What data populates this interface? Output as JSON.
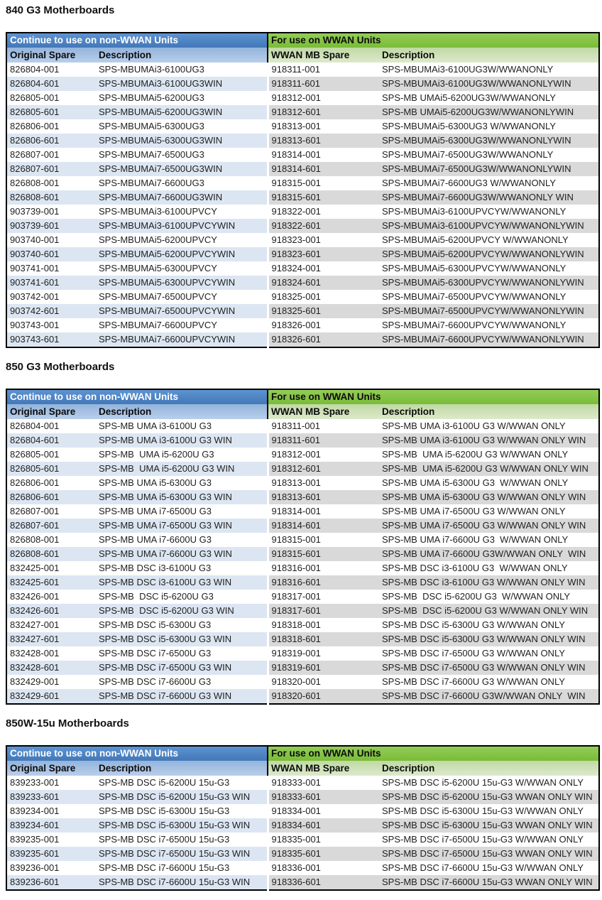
{
  "colors": {
    "banner_blue": "#4c83c4",
    "column_header_blue": "#9dbce1",
    "row_shade_blue": "#dce6f2",
    "banner_green": "#85c540",
    "column_header_green": "#ccdfb5",
    "row_shade_gray": "#d9d9d9",
    "table_border": "#000000",
    "banner_left_text": "#ffffff",
    "body_text": "#1f1f1f"
  },
  "sections": [
    {
      "title": "840 G3 Motherboards",
      "banner_left": "Continue to use on non-WWAN Units",
      "banner_right": "For use on WWAN Units",
      "columns": [
        "Original Spare",
        "Description",
        "WWAN MB Spare",
        "Description"
      ],
      "rows": [
        [
          "826804-001",
          "SPS-MBUMAi3-6100UG3",
          "918311-001",
          "SPS-MBUMAi3-6100UG3W/WWANONLY"
        ],
        [
          "826804-601",
          "SPS-MBUMAi3-6100UG3WIN",
          "918311-601",
          "SPS-MBUMAi3-6100UG3W/WWANONLYWIN"
        ],
        [
          "826805-001",
          "SPS-MBUMAi5-6200UG3",
          "918312-001",
          "SPS-MB UMAi5-6200UG3W/WWANONLY"
        ],
        [
          "826805-601",
          "SPS-MBUMAi5-6200UG3WIN",
          "918312-601",
          "SPS-MB UMAi5-6200UG3W/WWANONLYWIN"
        ],
        [
          "826806-001",
          "SPS-MBUMAi5-6300UG3",
          "918313-001",
          "SPS-MBUMAi5-6300UG3 W/WWANONLY"
        ],
        [
          "826806-601",
          "SPS-MBUMAi5-6300UG3WIN",
          "918313-601",
          "SPS-MBUMAi5-6300UG3W/WWANONLYWIN"
        ],
        [
          "826807-001",
          "SPS-MBUMAi7-6500UG3",
          "918314-001",
          "SPS-MBUMAi7-6500UG3W/WWANONLY"
        ],
        [
          "826807-601",
          "SPS-MBUMAi7-6500UG3WIN",
          "918314-601",
          "SPS-MBUMAi7-6500UG3W/WWANONLYWIN"
        ],
        [
          "826808-001",
          "SPS-MBUMAi7-6600UG3",
          "918315-001",
          "SPS-MBUMAi7-6600UG3 W/WWANONLY"
        ],
        [
          "826808-601",
          "SPS-MBUMAi7-6600UG3WIN",
          "918315-601",
          "SPS-MBUMAi7-6600UG3W/WWANONLY WIN"
        ],
        [
          "903739-001",
          "SPS-MBUMAi3-6100UPVCY",
          "918322-001",
          "SPS-MBUMAi3-6100UPVCYW/WWANONLY"
        ],
        [
          "903739-601",
          "SPS-MBUMAi3-6100UPVCYWIN",
          "918322-601",
          "SPS-MBUMAi3-6100UPVCYW/WWANONLYWIN"
        ],
        [
          "903740-001",
          "SPS-MBUMAi5-6200UPVCY",
          "918323-001",
          "SPS-MBUMAi5-6200UPVCY W/WWANONLY"
        ],
        [
          "903740-601",
          "SPS-MBUMAi5-6200UPVCYWIN",
          "918323-601",
          "SPS-MBUMAi5-6200UPVCYW/WWANONLYWIN"
        ],
        [
          "903741-001",
          "SPS-MBUMAi5-6300UPVCY",
          "918324-001",
          "SPS-MBUMAi5-6300UPVCYW/WWANONLY"
        ],
        [
          "903741-601",
          "SPS-MBUMAi5-6300UPVCYWIN",
          "918324-601",
          "SPS-MBUMAi5-6300UPVCYW/WWANONLYWIN"
        ],
        [
          "903742-001",
          "SPS-MBUMAi7-6500UPVCY",
          "918325-001",
          "SPS-MBUMAi7-6500UPVCYW/WWANONLY"
        ],
        [
          "903742-601",
          "SPS-MBUMAi7-6500UPVCYWIN",
          "918325-601",
          "SPS-MBUMAi7-6500UPVCYW/WWANONLYWIN"
        ],
        [
          "903743-001",
          "SPS-MBUMAi7-6600UPVCY",
          "918326-001",
          "SPS-MBUMAi7-6600UPVCYW/WWANONLY"
        ],
        [
          "903743-601",
          "SPS-MBUMAi7-6600UPVCYWIN",
          "918326-601",
          "SPS-MBUMAi7-6600UPVCYW/WWANONLYWIN"
        ]
      ]
    },
    {
      "title": "850 G3 Motherboards",
      "banner_left": "Continue to use on non-WWAN Units",
      "banner_right": "For use on WWAN Units",
      "columns": [
        "Original Spare",
        "Description",
        "WWAN MB Spare",
        "Description"
      ],
      "rows": [
        [
          "826804-001",
          "SPS-MB UMA i3-6100U G3",
          "918311-001",
          "SPS-MB UMA i3-6100U G3 W/WWAN ONLY"
        ],
        [
          "826804-601",
          "SPS-MB UMA i3-6100U G3 WIN",
          "918311-601",
          "SPS-MB UMA i3-6100U G3 W/WWAN ONLY WIN"
        ],
        [
          "826805-001",
          "SPS-MB  UMA i5-6200U G3",
          "918312-001",
          "SPS-MB  UMA i5-6200U G3 W/WWAN ONLY"
        ],
        [
          "826805-601",
          "SPS-MB  UMA i5-6200U G3 WIN",
          "918312-601",
          "SPS-MB  UMA i5-6200U G3 W/WWAN ONLY WIN"
        ],
        [
          "826806-001",
          "SPS-MB UMA i5-6300U G3",
          "918313-001",
          "SPS-MB UMA i5-6300U G3  W/WWAN ONLY"
        ],
        [
          "826806-601",
          "SPS-MB UMA i5-6300U G3 WIN",
          "918313-601",
          "SPS-MB UMA i5-6300U G3 W/WWAN ONLY WIN"
        ],
        [
          "826807-001",
          "SPS-MB UMA i7-6500U G3",
          "918314-001",
          "SPS-MB UMA i7-6500U G3 W/WWAN ONLY"
        ],
        [
          "826807-601",
          "SPS-MB UMA i7-6500U G3 WIN",
          "918314-601",
          "SPS-MB UMA i7-6500U G3 W/WWAN ONLY WIN"
        ],
        [
          "826808-001",
          "SPS-MB UMA i7-6600U G3",
          "918315-001",
          "SPS-MB UMA i7-6600U G3  W/WWAN ONLY"
        ],
        [
          "826808-601",
          "SPS-MB UMA i7-6600U G3 WIN",
          "918315-601",
          "SPS-MB UMA i7-6600U G3W/WWAN ONLY  WIN"
        ],
        [
          "832425-001",
          "SPS-MB DSC i3-6100U G3",
          "918316-001",
          "SPS-MB DSC i3-6100U G3  W/WWAN ONLY"
        ],
        [
          "832425-601",
          "SPS-MB DSC i3-6100U G3 WIN",
          "918316-601",
          "SPS-MB DSC i3-6100U G3 W/WWAN ONLY WIN"
        ],
        [
          "832426-001",
          "SPS-MB  DSC i5-6200U G3",
          "918317-001",
          "SPS-MB  DSC i5-6200U G3  W/WWAN ONLY"
        ],
        [
          "832426-601",
          "SPS-MB  DSC i5-6200U G3 WIN",
          "918317-601",
          "SPS-MB  DSC i5-6200U G3 W/WWAN ONLY WIN"
        ],
        [
          "832427-001",
          "SPS-MB DSC i5-6300U G3",
          "918318-001",
          "SPS-MB DSC i5-6300U G3 W/WWAN ONLY"
        ],
        [
          "832427-601",
          "SPS-MB DSC i5-6300U G3 WIN",
          "918318-601",
          "SPS-MB DSC i5-6300U G3 W/WWAN ONLY WIN"
        ],
        [
          "832428-001",
          "SPS-MB DSC i7-6500U G3",
          "918319-001",
          "SPS-MB DSC i7-6500U G3 W/WWAN ONLY"
        ],
        [
          "832428-601",
          "SPS-MB DSC i7-6500U G3 WIN",
          "918319-601",
          "SPS-MB DSC i7-6500U G3 W/WWAN ONLY WIN"
        ],
        [
          "832429-001",
          "SPS-MB DSC i7-6600U G3",
          "918320-001",
          "SPS-MB DSC i7-6600U G3 W/WWAN ONLY"
        ],
        [
          "832429-601",
          "SPS-MB DSC i7-6600U G3 WIN",
          "918320-601",
          "SPS-MB DSC i7-6600U G3W/WWAN ONLY  WIN"
        ]
      ]
    },
    {
      "title": "850W-15u Motherboards",
      "banner_left": "Continue to use on non-WWAN Units",
      "banner_right": "For use on WWAN Units",
      "columns": [
        "Original Spare",
        "Description",
        "WWAN MB Spare",
        "Description"
      ],
      "rows": [
        [
          "839233-001",
          "SPS-MB DSC i5-6200U 15u-G3",
          "918333-001",
          "SPS-MB DSC i5-6200U 15u-G3 W/WWAN ONLY"
        ],
        [
          "839233-601",
          "SPS-MB DSC i5-6200U 15u-G3 WIN",
          "918333-601",
          "SPS-MB DSC i5-6200U 15u-G3 WWAN ONLY WIN"
        ],
        [
          "839234-001",
          "SPS-MB DSC i5-6300U 15u-G3",
          "918334-001",
          "SPS-MB DSC i5-6300U 15u-G3 W/WWAN ONLY"
        ],
        [
          "839234-601",
          "SPS-MB DSC i5-6300U 15u-G3 WIN",
          "918334-601",
          "SPS-MB DSC i5-6300U 15u-G3 WWAN ONLY WIN"
        ],
        [
          "839235-001",
          "SPS-MB DSC i7-6500U 15u-G3",
          "918335-001",
          "SPS-MB DSC i7-6500U 15u-G3 W/WWAN ONLY"
        ],
        [
          "839235-601",
          "SPS-MB DSC i7-6500U 15u-G3 WIN",
          "918335-601",
          "SPS-MB DSC i7-6500U 15u-G3 WWAN ONLY WIN"
        ],
        [
          "839236-001",
          "SPS-MB DSC i7-6600U 15u-G3",
          "918336-001",
          "SPS-MB DSC i7-6600U 15u-G3 W/WWAN ONLY"
        ],
        [
          "839236-601",
          "SPS-MB DSC i7-6600U 15u-G3 WIN",
          "918336-601",
          "SPS-MB DSC i7-6600U 15u-G3 WWAN ONLY WIN"
        ]
      ]
    }
  ]
}
